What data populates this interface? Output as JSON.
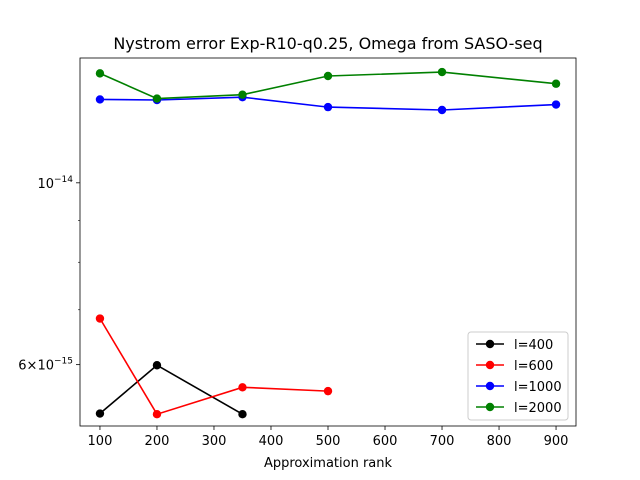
{
  "chart_data": {
    "type": "line",
    "title": "Nystrom error Exp-R10-q0.25, Omega from SASO-seq",
    "xlabel": "Approximation rank",
    "ylabel": "",
    "yscale": "log",
    "xlim": [
      65,
      935
    ],
    "ylim": [
      5.05e-15,
      1.42e-14
    ],
    "x_ticks": [
      100,
      200,
      300,
      400,
      500,
      600,
      700,
      800,
      900
    ],
    "x_tick_labels": [
      "100",
      "200",
      "300",
      "400",
      "500",
      "600",
      "700",
      "800",
      "900"
    ],
    "y_major_ticks": [
      1e-14,
      6e-15
    ],
    "y_major_labels": [
      "10^-14",
      "6×10^-15"
    ],
    "y_minor_ticks": [
      7e-15,
      8e-15,
      9e-15,
      2e-14
    ],
    "grid": false,
    "legend_position": "lower-right",
    "series": [
      {
        "name": "l=400",
        "color": "#000000",
        "x": [
          100,
          200,
          350
        ],
        "y": [
          5.23e-15,
          5.99e-15,
          5.22e-15
        ]
      },
      {
        "name": "l=600",
        "color": "#ff0000",
        "x": [
          100,
          200,
          350,
          500
        ],
        "y": [
          6.83e-15,
          5.22e-15,
          5.63e-15,
          5.57e-15
        ]
      },
      {
        "name": "l=1000",
        "color": "#0000ff",
        "x": [
          100,
          200,
          350,
          500,
          700,
          900
        ],
        "y": [
          1.264e-14,
          1.262e-14,
          1.272e-14,
          1.237e-14,
          1.227e-14,
          1.246e-14
        ]
      },
      {
        "name": "l=2000",
        "color": "#008000",
        "x": [
          100,
          200,
          350,
          500,
          700,
          900
        ],
        "y": [
          1.36e-14,
          1.267e-14,
          1.281e-14,
          1.35e-14,
          1.365e-14,
          1.321e-14
        ]
      }
    ]
  }
}
